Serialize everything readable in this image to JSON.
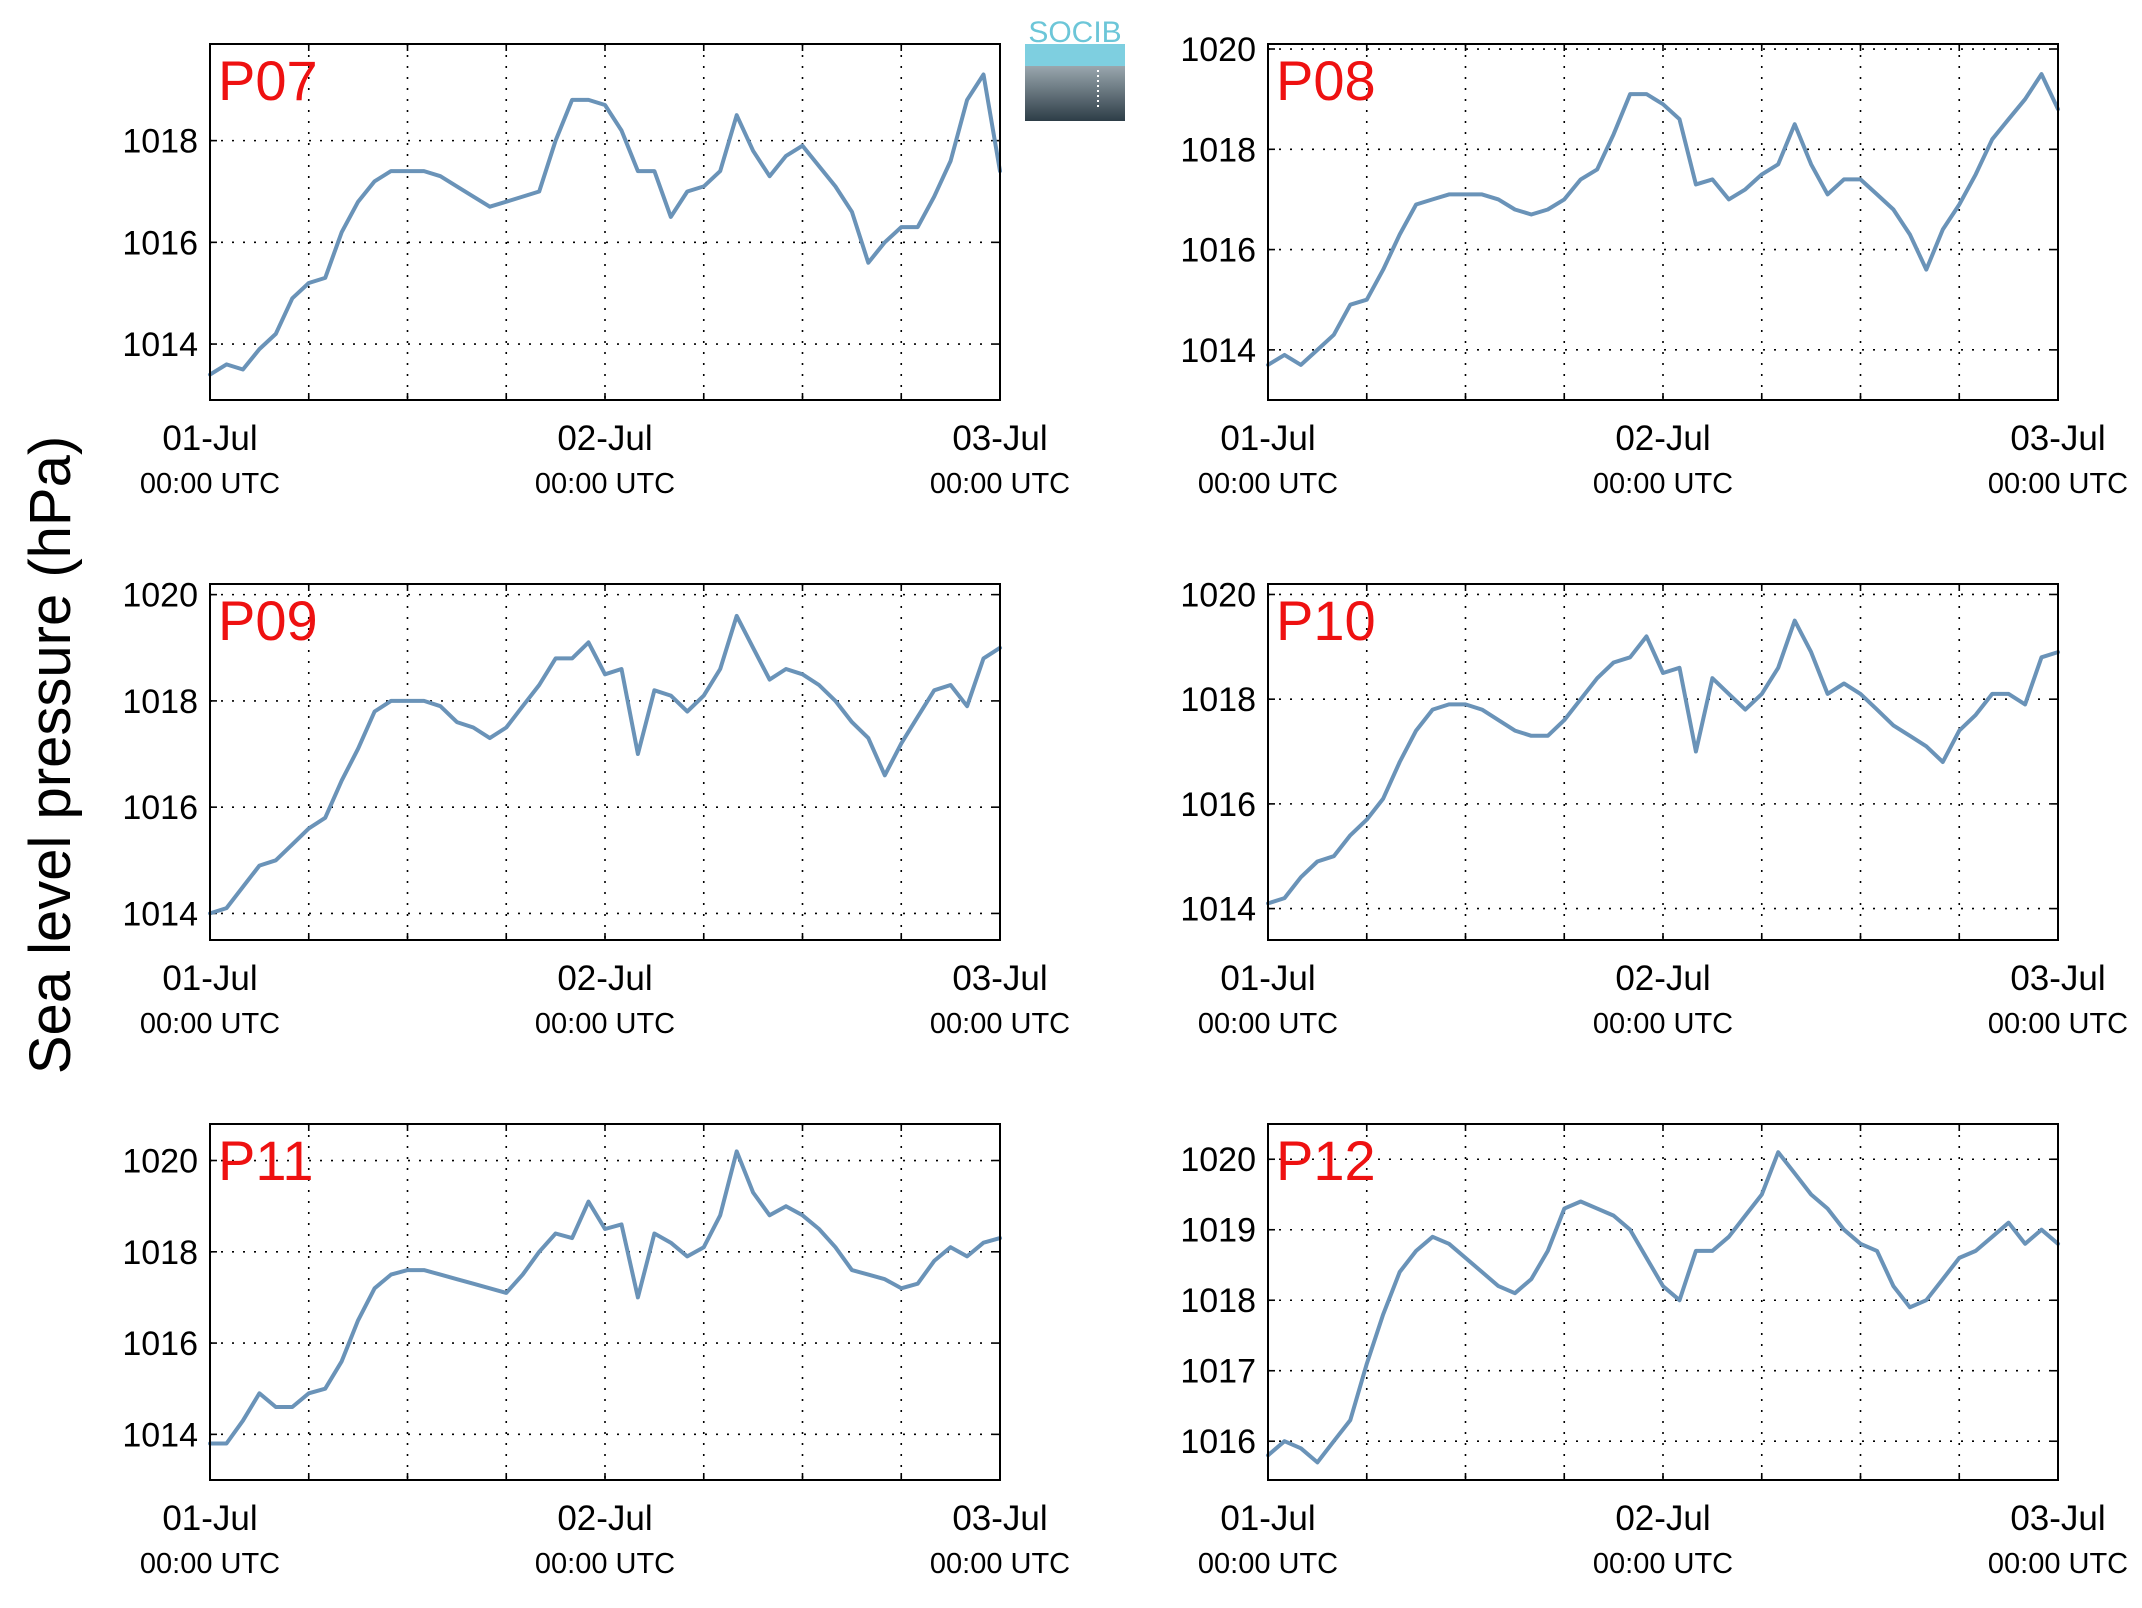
{
  "figure": {
    "ylabel": "Sea level pressure (hPa)",
    "logo_text": "SOCIB"
  },
  "style": {
    "line_color": "#6a93b8",
    "station_label_color": "#ee1111",
    "axis_color": "#000000",
    "logo_top_color": "#7ecfe0",
    "logo_bottom_color": "#2d3d47"
  },
  "chart_data": [
    {
      "type": "line",
      "title": "P07",
      "x_ticks": [
        "01-Jul",
        "02-Jul",
        "03-Jul"
      ],
      "x_ticks_sub": [
        "00:00 UTC",
        "00:00 UTC",
        "00:00 UTC"
      ],
      "x_unit": "hours since 01-Jul 00:00 UTC",
      "xlim": [
        0,
        48
      ],
      "ylim": [
        1012.9,
        1019.9
      ],
      "yticks": [
        1014,
        1016,
        1018
      ],
      "grid": true,
      "x": [
        0,
        1,
        2,
        3,
        4,
        5,
        6,
        7,
        8,
        9,
        10,
        11,
        12,
        13,
        14,
        15,
        16,
        17,
        18,
        19,
        20,
        21,
        22,
        23,
        24,
        25,
        26,
        27,
        28,
        29,
        30,
        31,
        32,
        33,
        34,
        35,
        36,
        37,
        38,
        39,
        40,
        41,
        42,
        43,
        44,
        45,
        46,
        47,
        48
      ],
      "values": [
        1013.4,
        1013.6,
        1013.5,
        1013.9,
        1014.2,
        1014.9,
        1015.2,
        1015.3,
        1016.2,
        1016.8,
        1017.2,
        1017.4,
        1017.4,
        1017.4,
        1017.3,
        1017.1,
        1016.9,
        1016.7,
        1016.8,
        1016.9,
        1017.0,
        1018.0,
        1018.8,
        1018.8,
        1018.7,
        1018.2,
        1017.4,
        1017.4,
        1016.5,
        1017.0,
        1017.1,
        1017.4,
        1018.5,
        1017.8,
        1017.3,
        1017.7,
        1017.9,
        1017.5,
        1017.1,
        1016.6,
        1015.6,
        1016.0,
        1016.3,
        1016.3,
        1016.9,
        1017.6,
        1018.8,
        1019.3,
        1017.4
      ]
    },
    {
      "type": "line",
      "title": "P08",
      "x_ticks": [
        "01-Jul",
        "02-Jul",
        "03-Jul"
      ],
      "x_ticks_sub": [
        "00:00 UTC",
        "00:00 UTC",
        "00:00 UTC"
      ],
      "x_unit": "hours since 01-Jul 00:00 UTC",
      "xlim": [
        0,
        48
      ],
      "ylim": [
        1013.0,
        1020.1
      ],
      "yticks": [
        1014,
        1016,
        1018,
        1020
      ],
      "grid": true,
      "x": [
        0,
        1,
        2,
        3,
        4,
        5,
        6,
        7,
        8,
        9,
        10,
        11,
        12,
        13,
        14,
        15,
        16,
        17,
        18,
        19,
        20,
        21,
        22,
        23,
        24,
        25,
        26,
        27,
        28,
        29,
        30,
        31,
        32,
        33,
        34,
        35,
        36,
        37,
        38,
        39,
        40,
        41,
        42,
        43,
        44,
        45,
        46,
        47,
        48
      ],
      "values": [
        1013.7,
        1013.9,
        1013.7,
        1014.0,
        1014.3,
        1014.9,
        1015.0,
        1015.6,
        1016.3,
        1016.9,
        1017.0,
        1017.1,
        1017.1,
        1017.1,
        1017.0,
        1016.8,
        1016.7,
        1016.8,
        1017.0,
        1017.4,
        1017.6,
        1018.3,
        1019.1,
        1019.1,
        1018.9,
        1018.6,
        1017.3,
        1017.4,
        1017.0,
        1017.2,
        1017.5,
        1017.7,
        1018.5,
        1017.7,
        1017.1,
        1017.4,
        1017.4,
        1017.1,
        1016.8,
        1016.3,
        1015.6,
        1016.4,
        1016.9,
        1017.5,
        1018.2,
        1018.6,
        1019.0,
        1019.5,
        1018.8
      ]
    },
    {
      "type": "line",
      "title": "P09",
      "x_ticks": [
        "01-Jul",
        "02-Jul",
        "03-Jul"
      ],
      "x_ticks_sub": [
        "00:00 UTC",
        "00:00 UTC",
        "00:00 UTC"
      ],
      "x_unit": "hours since 01-Jul 00:00 UTC",
      "xlim": [
        0,
        48
      ],
      "ylim": [
        1013.5,
        1020.2
      ],
      "yticks": [
        1014,
        1016,
        1018,
        1020
      ],
      "grid": true,
      "x": [
        0,
        1,
        2,
        3,
        4,
        5,
        6,
        7,
        8,
        9,
        10,
        11,
        12,
        13,
        14,
        15,
        16,
        17,
        18,
        19,
        20,
        21,
        22,
        23,
        24,
        25,
        26,
        27,
        28,
        29,
        30,
        31,
        32,
        33,
        34,
        35,
        36,
        37,
        38,
        39,
        40,
        41,
        42,
        43,
        44,
        45,
        46,
        47,
        48
      ],
      "values": [
        1014.0,
        1014.1,
        1014.5,
        1014.9,
        1015.0,
        1015.3,
        1015.6,
        1015.8,
        1016.5,
        1017.1,
        1017.8,
        1018.0,
        1018.0,
        1018.0,
        1017.9,
        1017.6,
        1017.5,
        1017.3,
        1017.5,
        1017.9,
        1018.3,
        1018.8,
        1018.8,
        1019.1,
        1018.5,
        1018.6,
        1017.0,
        1018.2,
        1018.1,
        1017.8,
        1018.1,
        1018.6,
        1019.6,
        1019.0,
        1018.4,
        1018.6,
        1018.5,
        1018.3,
        1018.0,
        1017.6,
        1017.3,
        1016.6,
        1017.2,
        1017.7,
        1018.2,
        1018.3,
        1017.9,
        1018.8,
        1019.0
      ]
    },
    {
      "type": "line",
      "title": "P10",
      "x_ticks": [
        "01-Jul",
        "02-Jul",
        "03-Jul"
      ],
      "x_ticks_sub": [
        "00:00 UTC",
        "00:00 UTC",
        "00:00 UTC"
      ],
      "x_unit": "hours since 01-Jul 00:00 UTC",
      "xlim": [
        0,
        48
      ],
      "ylim": [
        1013.4,
        1020.2
      ],
      "yticks": [
        1014,
        1016,
        1018,
        1020
      ],
      "grid": true,
      "x": [
        0,
        1,
        2,
        3,
        4,
        5,
        6,
        7,
        8,
        9,
        10,
        11,
        12,
        13,
        14,
        15,
        16,
        17,
        18,
        19,
        20,
        21,
        22,
        23,
        24,
        25,
        26,
        27,
        28,
        29,
        30,
        31,
        32,
        33,
        34,
        35,
        36,
        37,
        38,
        39,
        40,
        41,
        42,
        43,
        44,
        45,
        46,
        47,
        48
      ],
      "values": [
        1014.1,
        1014.2,
        1014.6,
        1014.9,
        1015.0,
        1015.4,
        1015.7,
        1016.1,
        1016.8,
        1017.4,
        1017.8,
        1017.9,
        1017.9,
        1017.8,
        1017.6,
        1017.4,
        1017.3,
        1017.3,
        1017.6,
        1018.0,
        1018.4,
        1018.7,
        1018.8,
        1019.2,
        1018.5,
        1018.6,
        1017.0,
        1018.4,
        1018.1,
        1017.8,
        1018.1,
        1018.6,
        1019.5,
        1018.9,
        1018.1,
        1018.3,
        1018.1,
        1017.8,
        1017.5,
        1017.3,
        1017.1,
        1016.8,
        1017.4,
        1017.7,
        1018.1,
        1018.1,
        1017.9,
        1018.8,
        1018.9
      ]
    },
    {
      "type": "line",
      "title": "P11",
      "x_ticks": [
        "01-Jul",
        "02-Jul",
        "03-Jul"
      ],
      "x_ticks_sub": [
        "00:00 UTC",
        "00:00 UTC",
        "00:00 UTC"
      ],
      "x_unit": "hours since 01-Jul 00:00 UTC",
      "xlim": [
        0,
        48
      ],
      "ylim": [
        1013.0,
        1020.8
      ],
      "yticks": [
        1014,
        1016,
        1018,
        1020
      ],
      "grid": true,
      "x": [
        0,
        1,
        2,
        3,
        4,
        5,
        6,
        7,
        8,
        9,
        10,
        11,
        12,
        13,
        14,
        15,
        16,
        17,
        18,
        19,
        20,
        21,
        22,
        23,
        24,
        25,
        26,
        27,
        28,
        29,
        30,
        31,
        32,
        33,
        34,
        35,
        36,
        37,
        38,
        39,
        40,
        41,
        42,
        43,
        44,
        45,
        46,
        47,
        48
      ],
      "values": [
        1013.8,
        1013.8,
        1014.3,
        1014.9,
        1014.6,
        1014.6,
        1014.9,
        1015.0,
        1015.6,
        1016.5,
        1017.2,
        1017.5,
        1017.6,
        1017.6,
        1017.5,
        1017.4,
        1017.3,
        1017.2,
        1017.1,
        1017.5,
        1018.0,
        1018.4,
        1018.3,
        1019.1,
        1018.5,
        1018.6,
        1017.0,
        1018.4,
        1018.2,
        1017.9,
        1018.1,
        1018.8,
        1020.2,
        1019.3,
        1018.8,
        1019.0,
        1018.8,
        1018.5,
        1018.1,
        1017.6,
        1017.5,
        1017.4,
        1017.2,
        1017.3,
        1017.8,
        1018.1,
        1017.9,
        1018.2,
        1018.3
      ]
    },
    {
      "type": "line",
      "title": "P12",
      "x_ticks": [
        "01-Jul",
        "02-Jul",
        "03-Jul"
      ],
      "x_ticks_sub": [
        "00:00 UTC",
        "00:00 UTC",
        "00:00 UTC"
      ],
      "x_unit": "hours since 01-Jul 00:00 UTC",
      "xlim": [
        0,
        48
      ],
      "ylim": [
        1015.45,
        1020.5
      ],
      "yticks": [
        1016,
        1017,
        1018,
        1019,
        1020
      ],
      "grid": true,
      "x": [
        0,
        1,
        2,
        3,
        4,
        5,
        6,
        7,
        8,
        9,
        10,
        11,
        12,
        13,
        14,
        15,
        16,
        17,
        18,
        19,
        20,
        21,
        22,
        23,
        24,
        25,
        26,
        27,
        28,
        29,
        30,
        31,
        32,
        33,
        34,
        35,
        36,
        37,
        38,
        39,
        40,
        41,
        42,
        43,
        44,
        45,
        46,
        47,
        48
      ],
      "values": [
        1015.8,
        1016.0,
        1015.9,
        1015.7,
        1016.0,
        1016.3,
        1017.1,
        1017.8,
        1018.4,
        1018.7,
        1018.9,
        1018.8,
        1018.6,
        1018.4,
        1018.2,
        1018.1,
        1018.3,
        1018.7,
        1019.3,
        1019.4,
        1019.3,
        1019.2,
        1019.0,
        1018.6,
        1018.2,
        1018.0,
        1018.7,
        1018.7,
        1018.9,
        1019.2,
        1019.5,
        1020.1,
        1019.8,
        1019.5,
        1019.3,
        1019.0,
        1018.8,
        1018.7,
        1018.2,
        1017.9,
        1018.0,
        1018.3,
        1018.6,
        1018.7,
        1018.9,
        1019.1,
        1018.8,
        1019.0,
        1018.8
      ]
    }
  ]
}
